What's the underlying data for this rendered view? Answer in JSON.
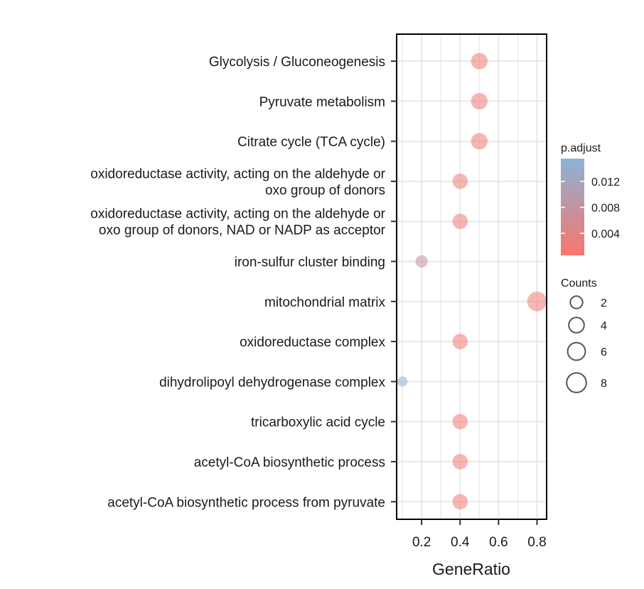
{
  "chart_data": {
    "type": "scatter",
    "title": "",
    "xlabel": "GeneRatio",
    "ylabel": "",
    "xlim": [
      0.07,
      0.85
    ],
    "x_ticks": [
      0.2,
      0.4,
      0.6,
      0.8
    ],
    "x_tick_labels": [
      "0.2",
      "0.4",
      "0.6",
      "0.8"
    ],
    "grid": true,
    "categories": [
      [
        "Glycolysis / Gluconeogenesis"
      ],
      [
        "Pyruvate metabolism"
      ],
      [
        "Citrate cycle (TCA cycle)"
      ],
      [
        "oxidoreductase activity, acting on the aldehyde or",
        "oxo group of donors"
      ],
      [
        "oxidoreductase activity, acting on the aldehyde or",
        "oxo group of donors, NAD or NADP as acceptor"
      ],
      [
        "iron-sulfur cluster binding"
      ],
      [
        "mitochondrial matrix"
      ],
      [
        "oxidoreductase complex"
      ],
      [
        "dihydrolipoyl dehydrogenase complex"
      ],
      [
        "tricarboxylic acid cycle"
      ],
      [
        "acetyl-CoA biosynthetic process"
      ],
      [
        "acetyl-CoA biosynthetic process from pyruvate"
      ]
    ],
    "gene_ratio": [
      0.5,
      0.5,
      0.5,
      0.4,
      0.4,
      0.2,
      0.8,
      0.4,
      0.1,
      0.4,
      0.4,
      0.4
    ],
    "count": [
      5,
      5,
      5,
      4,
      4,
      2,
      8,
      4,
      1,
      4,
      4,
      4
    ],
    "p_adjust": [
      0.0015,
      0.0015,
      0.0015,
      0.0025,
      0.0025,
      0.007,
      0.0018,
      0.0015,
      0.0155,
      0.0015,
      0.0015,
      0.0015
    ],
    "color_legend": {
      "title": "p.adjust",
      "ticks": [
        0.012,
        0.008,
        0.004
      ],
      "tick_labels": [
        "0.012",
        "0.008",
        "0.004"
      ],
      "range": [
        0.0006,
        0.0155
      ],
      "low_color": "#F8766D",
      "high_color": "#8BB3D6",
      "position": "right"
    },
    "size_legend": {
      "title": "Counts",
      "values": [
        2,
        4,
        6,
        8
      ],
      "labels": [
        "2",
        "4",
        "6",
        "8"
      ],
      "position": "right"
    },
    "point_alpha": 0.55,
    "panel_background": "#ffffff",
    "grid_color": "#e8e8e8"
  }
}
